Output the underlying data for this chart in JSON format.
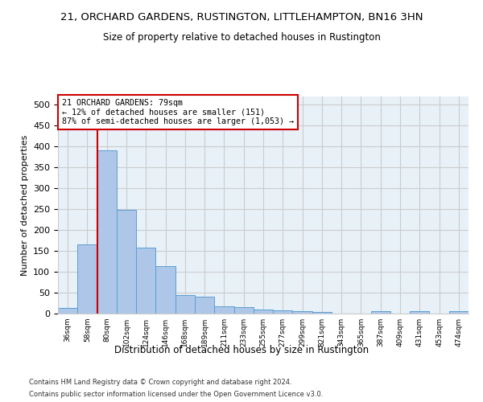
{
  "title": "21, ORCHARD GARDENS, RUSTINGTON, LITTLEHAMPTON, BN16 3HN",
  "subtitle": "Size of property relative to detached houses in Rustington",
  "xlabel": "Distribution of detached houses by size in Rustington",
  "ylabel": "Number of detached properties",
  "bar_color": "#aec6e8",
  "bar_edge_color": "#5a9fd4",
  "categories": [
    "36sqm",
    "58sqm",
    "80sqm",
    "102sqm",
    "124sqm",
    "146sqm",
    "168sqm",
    "189sqm",
    "211sqm",
    "233sqm",
    "255sqm",
    "277sqm",
    "299sqm",
    "321sqm",
    "343sqm",
    "365sqm",
    "387sqm",
    "409sqm",
    "431sqm",
    "453sqm",
    "474sqm"
  ],
  "values": [
    13,
    165,
    390,
    248,
    157,
    114,
    44,
    40,
    18,
    15,
    10,
    8,
    6,
    4,
    0,
    0,
    5,
    0,
    5,
    0,
    5
  ],
  "ylim": [
    0,
    520
  ],
  "yticks": [
    0,
    50,
    100,
    150,
    200,
    250,
    300,
    350,
    400,
    450,
    500
  ],
  "vline_x": 1.5,
  "annotation_text": "21 ORCHARD GARDENS: 79sqm\n← 12% of detached houses are smaller (151)\n87% of semi-detached houses are larger (1,053) →",
  "annotation_box_color": "#ffffff",
  "annotation_box_edgecolor": "#cc0000",
  "vline_color": "#cc0000",
  "background_color": "#ffffff",
  "axes_background": "#e8f0f8",
  "grid_color": "#cccccc",
  "footer_line1": "Contains HM Land Registry data © Crown copyright and database right 2024.",
  "footer_line2": "Contains public sector information licensed under the Open Government Licence v3.0."
}
